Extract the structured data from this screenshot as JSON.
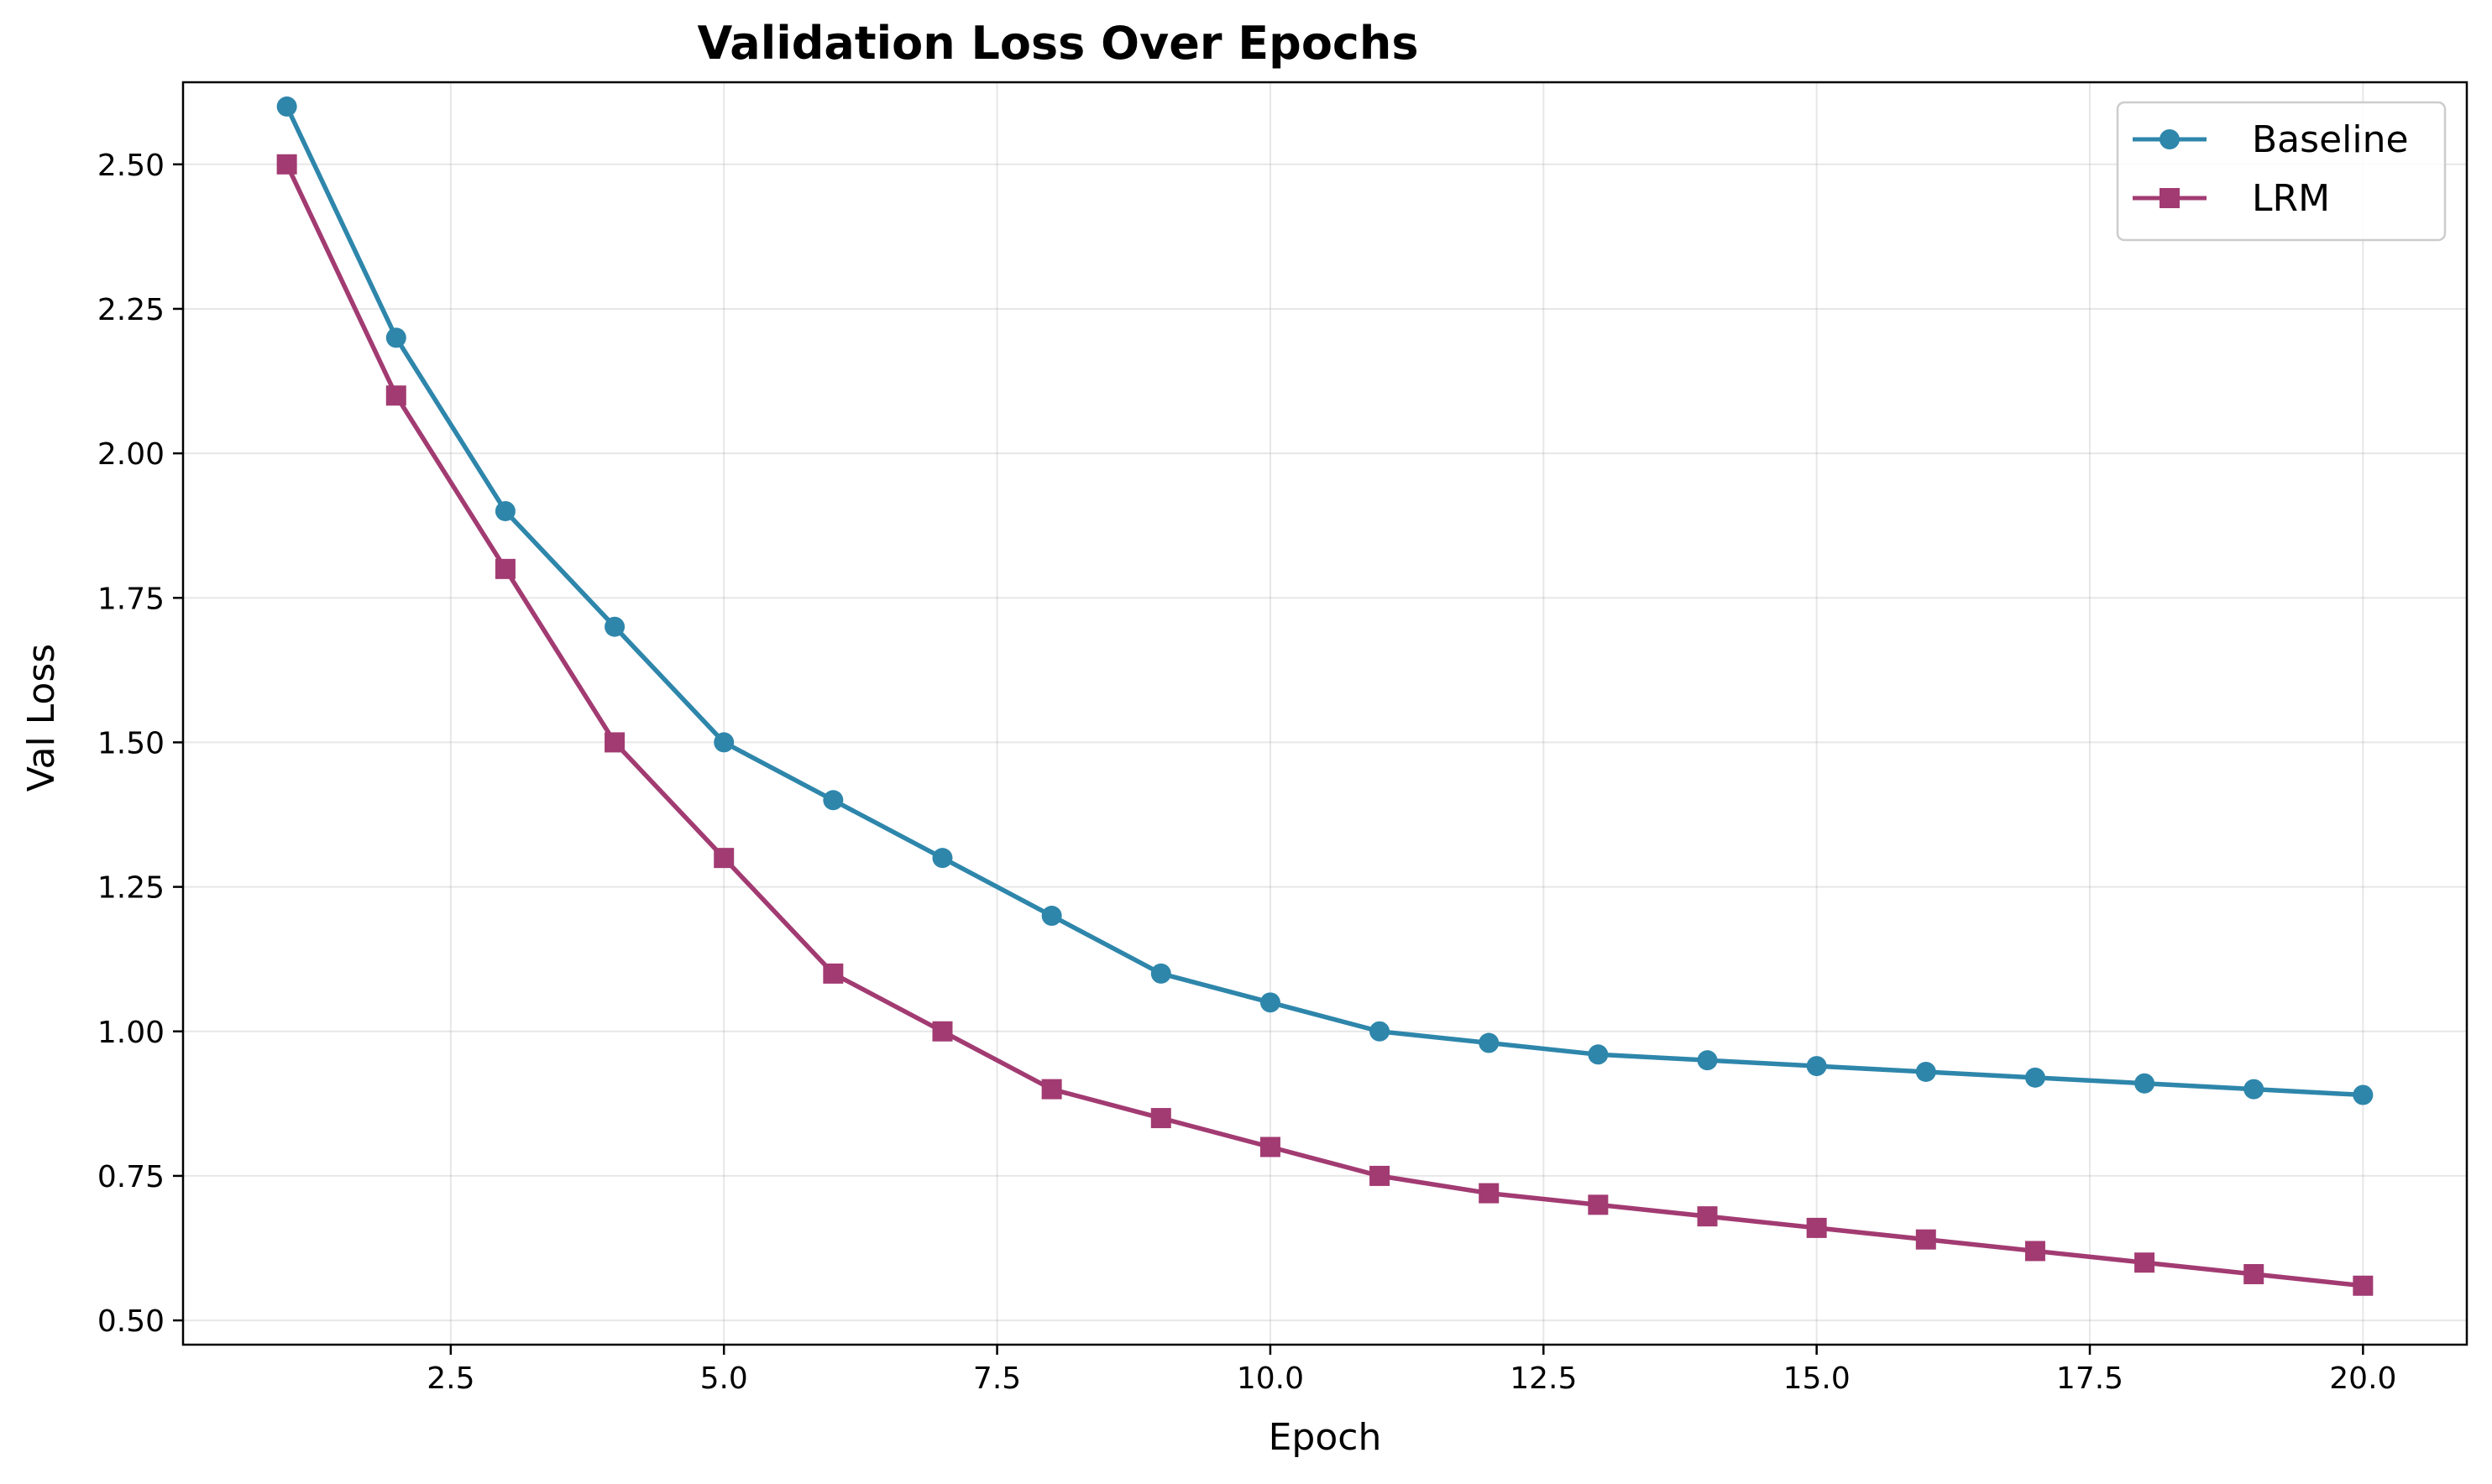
{
  "chart_data": {
    "type": "line",
    "title": "Validation Loss Over Epochs",
    "xlabel": "Epoch",
    "ylabel": "Val Loss",
    "x": [
      1,
      2,
      3,
      4,
      5,
      6,
      7,
      8,
      9,
      10,
      11,
      12,
      13,
      14,
      15,
      16,
      17,
      18,
      19,
      20
    ],
    "xlim": [
      0.05,
      20.95
    ],
    "ylim": [
      0.458,
      2.642
    ],
    "xticks": [
      2.5,
      5.0,
      7.5,
      10.0,
      12.5,
      15.0,
      17.5,
      20.0
    ],
    "xtick_labels": [
      "2.5",
      "5.0",
      "7.5",
      "10.0",
      "12.5",
      "15.0",
      "17.5",
      "20.0"
    ],
    "yticks": [
      0.5,
      0.75,
      1.0,
      1.25,
      1.5,
      1.75,
      2.0,
      2.25,
      2.5
    ],
    "ytick_labels": [
      "0.50",
      "0.75",
      "1.00",
      "1.25",
      "1.50",
      "1.75",
      "2.00",
      "2.25",
      "2.50"
    ],
    "grid": true,
    "legend_position": "top-right",
    "series": [
      {
        "name": "Baseline",
        "color": "#2e86ab",
        "marker": "circle",
        "values": [
          2.6,
          2.2,
          1.9,
          1.7,
          1.5,
          1.4,
          1.3,
          1.2,
          1.1,
          1.05,
          1.0,
          0.98,
          0.96,
          0.95,
          0.94,
          0.93,
          0.92,
          0.91,
          0.9,
          0.89
        ]
      },
      {
        "name": "LRM",
        "color": "#a23b72",
        "marker": "square",
        "values": [
          2.5,
          2.1,
          1.8,
          1.5,
          1.3,
          1.1,
          1.0,
          0.9,
          0.85,
          0.8,
          0.75,
          0.72,
          0.7,
          0.68,
          0.66,
          0.64,
          0.62,
          0.6,
          0.58,
          0.56
        ]
      }
    ]
  }
}
